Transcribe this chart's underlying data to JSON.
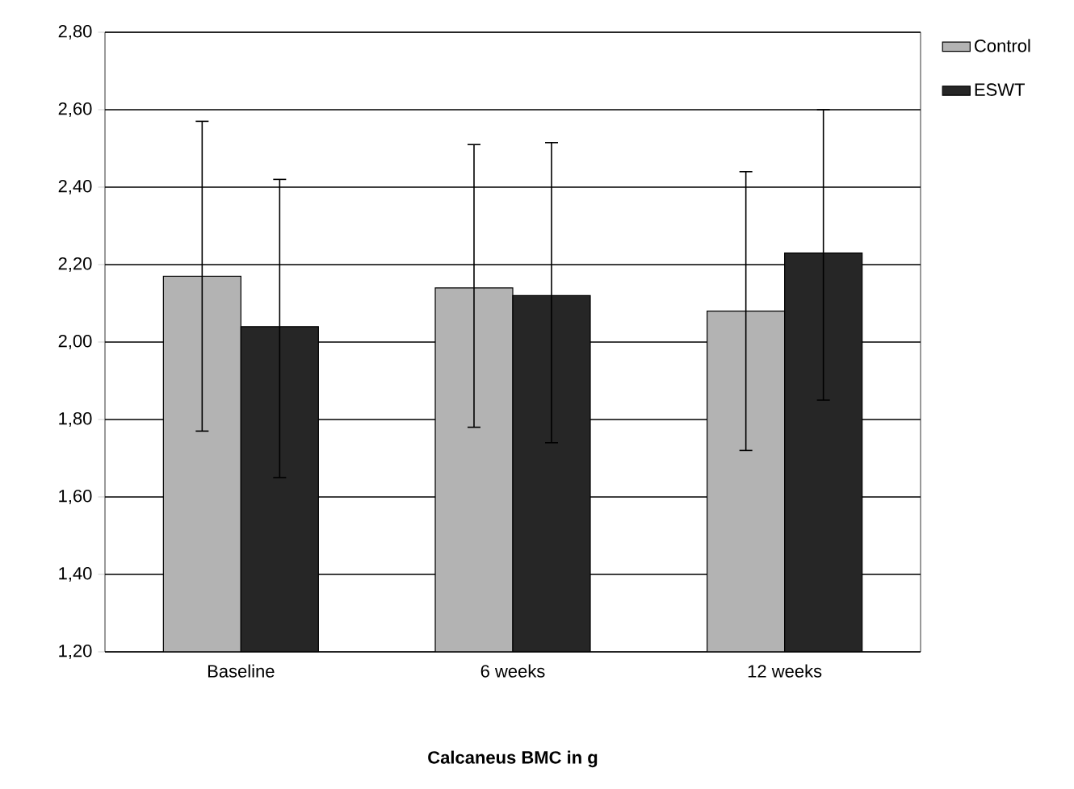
{
  "chart_data": {
    "type": "bar",
    "xlabel": "Calcaneus BMC in g",
    "categories": [
      "Baseline",
      "6 weeks",
      "12 weeks"
    ],
    "series": [
      {
        "name": "Control",
        "color": "#b3b3b3",
        "values": [
          2.17,
          2.14,
          2.08
        ],
        "errors": [
          [
            1.77,
            2.57
          ],
          [
            1.78,
            2.51
          ],
          [
            1.72,
            2.44
          ]
        ]
      },
      {
        "name": "ESWT",
        "color": "#262626",
        "values": [
          2.04,
          2.12,
          2.23
        ],
        "errors": [
          [
            1.65,
            2.42
          ],
          [
            1.74,
            2.515
          ],
          [
            1.85,
            2.6
          ]
        ]
      }
    ],
    "ylim": [
      1.2,
      2.8
    ],
    "yticks": [
      {
        "value": 1.2,
        "label": "1,20"
      },
      {
        "value": 1.4,
        "label": "1,40"
      },
      {
        "value": 1.6,
        "label": "1,60"
      },
      {
        "value": 1.8,
        "label": "1,80"
      },
      {
        "value": 2.0,
        "label": "2,00"
      },
      {
        "value": 2.2,
        "label": "2,20"
      },
      {
        "value": 2.4,
        "label": "2,40"
      },
      {
        "value": 2.6,
        "label": "2,60"
      },
      {
        "value": 2.8,
        "label": "2,80"
      }
    ],
    "grid": "y",
    "legend": "top right"
  }
}
